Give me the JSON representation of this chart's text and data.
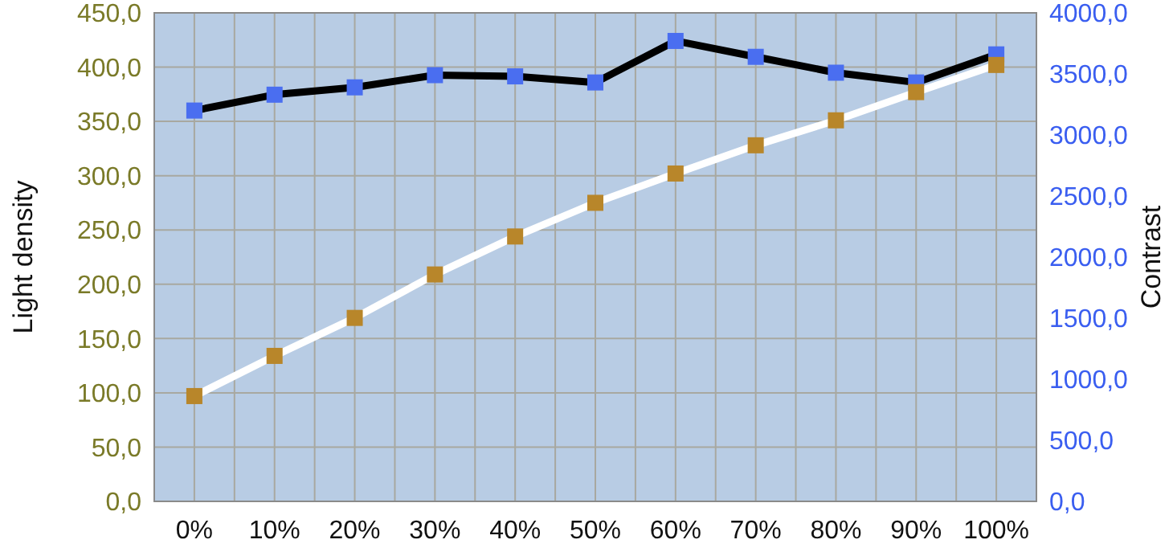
{
  "chart_data": {
    "type": "line",
    "ylabel": "Light density",
    "y2label": "Contrast",
    "categories": [
      "0%",
      "10%",
      "20%",
      "30%",
      "40%",
      "50%",
      "60%",
      "70%",
      "80%",
      "90%",
      "100%"
    ],
    "series": [
      {
        "color": "#000000",
        "colors": [
          "#4a6ef0",
          "#4a6ef0",
          "#4a6ef0",
          "#4a6ef0",
          "#4a6ef0",
          "#4a6ef0",
          "#4a6ef0",
          "#4a6ef0",
          "#4a6ef0",
          "#4a6ef0",
          "#4a6ef0"
        ],
        "axis": "y2",
        "values": [
          3200,
          3330,
          3390,
          3490,
          3480,
          3430,
          3770,
          3640,
          3510,
          3430,
          3660
        ]
      },
      {
        "color": "#ffffff",
        "colors": [
          "#b8862a",
          "#b8862a",
          "#b8862a",
          "#b8862a",
          "#b8862a",
          "#b8862a",
          "#b8862a",
          "#b8862a",
          "#b8862a",
          "#b8862a",
          "#b8862a"
        ],
        "values": [
          97,
          134,
          169,
          209,
          244,
          275,
          302,
          328,
          351,
          377,
          402
        ]
      }
    ],
    "ylim": [
      0,
      450
    ],
    "yticks": [
      {
        "value": 0,
        "label": "0,0"
      },
      {
        "value": 50,
        "label": "50,0"
      },
      {
        "value": 100,
        "label": "100,0"
      },
      {
        "value": 150,
        "label": "150,0"
      },
      {
        "value": 200,
        "label": "200,0"
      },
      {
        "value": 250,
        "label": "250,0"
      },
      {
        "value": 300,
        "label": "300,0"
      },
      {
        "value": 350,
        "label": "350,0"
      },
      {
        "value": 400,
        "label": "400,0"
      },
      {
        "value": 450,
        "label": "450,0"
      }
    ],
    "y2lim": [
      0,
      4000
    ],
    "y2ticks": [
      {
        "value": 0,
        "label": "0,0"
      },
      {
        "value": 500,
        "label": "500,0"
      },
      {
        "value": 1000,
        "label": "1000,0"
      },
      {
        "value": 1500,
        "label": "1500,0"
      },
      {
        "value": 2000,
        "label": "2000,0"
      },
      {
        "value": 2500,
        "label": "2500,0"
      },
      {
        "value": 3000,
        "label": "3000,0"
      },
      {
        "value": 3500,
        "label": "3500,0"
      },
      {
        "value": 4000,
        "label": "4000,0"
      }
    ],
    "grid": true,
    "marker": "square",
    "line_style": "solid"
  }
}
